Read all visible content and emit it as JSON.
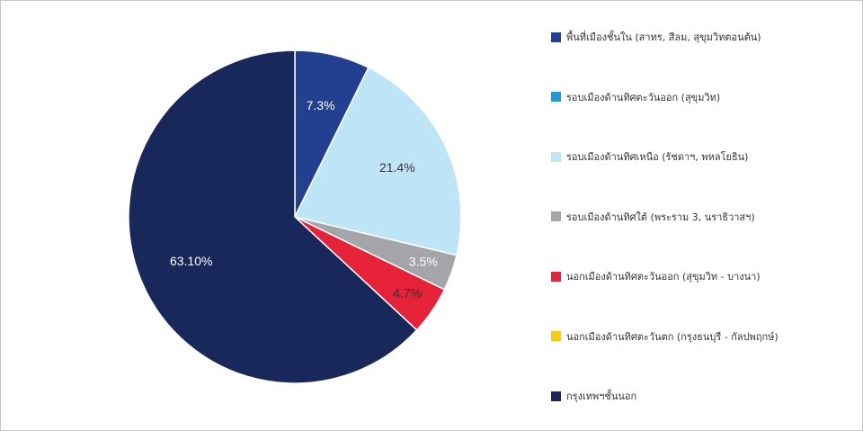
{
  "chart_data": {
    "type": "pie",
    "categories": [
      "พื้นที่เมืองชั้นใน (สาทร, สีลม, สุขุมวิทตอนต้น)",
      "รอบเมืองด้านทิศตะวันออก (สุขุมวิท)",
      "รอบเมืองด้านทิศเหนือ (รัชดาฯ, พหลโยธิน)",
      "รอบเมืองด้านทิศใต้ (พระราม 3, นราธิวาสฯ)",
      "นอกเมืองด้านทิศตะวันออก (สุขุมวิท - บางนา)",
      "นอกเมืองด้านทิศตะวันตก (กรุงธนบุรี - กัลปพฤกษ์)",
      "กรุงเทพฯชั้นนอก"
    ],
    "values": [
      7.3,
      0,
      21.4,
      3.5,
      4.7,
      0,
      63.1
    ],
    "labels": [
      "7.3%",
      "",
      "21.4%",
      "3.5%",
      "4.7%",
      "",
      "63.10%"
    ],
    "colors": [
      "#22408f",
      "#1f9bd1",
      "#bde5f5",
      "#a3a5a8",
      "#e52238",
      "#f6cb12",
      "#18285a"
    ],
    "label_colors": [
      "#ffffff",
      "#ffffff",
      "#333333",
      "#ffffff",
      "#333333",
      "#333333",
      "#ffffff"
    ],
    "legend_position": "right",
    "title": ""
  }
}
